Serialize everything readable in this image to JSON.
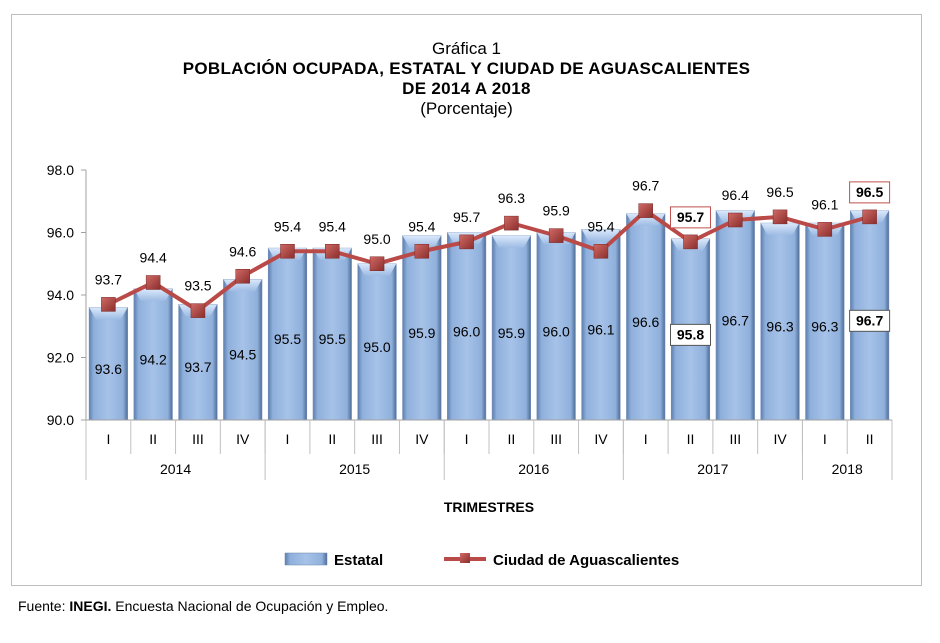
{
  "chart_data": {
    "type": "bar",
    "title_prefix": "Gráfica 1",
    "title": "POBLACIÓN OCUPADA, ESTATAL Y CIUDAD DE AGUASCALIENTES",
    "title_line2": "DE 2014 A 2018",
    "subtitle": "(Porcentaje)",
    "xlabel": "TRIMESTRES",
    "ylabel": "",
    "ylim": [
      90.0,
      98.0
    ],
    "yticks": [
      "90.0",
      "92.0",
      "94.0",
      "96.0",
      "98.0"
    ],
    "ytick_values": [
      90,
      92,
      94,
      96,
      98
    ],
    "categories": [
      "I",
      "II",
      "III",
      "IV",
      "I",
      "II",
      "III",
      "IV",
      "I",
      "II",
      "III",
      "IV",
      "I",
      "II",
      "III",
      "IV",
      "I",
      "II"
    ],
    "year_groups": [
      {
        "label": "2014",
        "count": 4
      },
      {
        "label": "2015",
        "count": 4
      },
      {
        "label": "2016",
        "count": 4
      },
      {
        "label": "2017",
        "count": 4
      },
      {
        "label": "2018",
        "count": 2
      }
    ],
    "series": [
      {
        "name": "Estatal",
        "type": "bar",
        "color": "#8eaedb",
        "values": [
          93.6,
          94.2,
          93.7,
          94.5,
          95.5,
          95.5,
          95.0,
          95.9,
          96.0,
          95.9,
          96.0,
          96.1,
          96.6,
          95.8,
          96.7,
          96.3,
          96.3,
          96.7
        ],
        "labels": [
          "93.6",
          "94.2",
          "93.7",
          "94.5",
          "95.5",
          "95.5",
          "95.0",
          "95.9",
          "96.0",
          "95.9",
          "96.0",
          "96.1",
          "96.6",
          "95.8",
          "96.7",
          "96.3",
          "96.3",
          "96.7"
        ],
        "highlighted_indices": [
          13,
          17
        ]
      },
      {
        "name": "Ciudad de Aguascalientes",
        "type": "line",
        "color": "#b94a48",
        "values": [
          93.7,
          94.4,
          93.5,
          94.6,
          95.4,
          95.4,
          95.0,
          95.4,
          95.7,
          96.3,
          95.9,
          95.4,
          96.7,
          95.7,
          96.4,
          96.5,
          96.1,
          96.5
        ],
        "labels": [
          "93.7",
          "94.4",
          "93.5",
          "94.6",
          "95.4",
          "95.4",
          "95.0",
          "95.4",
          "95.7",
          "96.3",
          "95.9",
          "95.4",
          "96.7",
          "95.7",
          "96.4",
          "96.5",
          "96.1",
          "96.5"
        ],
        "highlighted_indices": [
          13,
          17
        ]
      }
    ],
    "legend": {
      "position": "bottom",
      "items": [
        "Estatal",
        "Ciudad de Aguascalientes"
      ]
    },
    "grid": false
  },
  "source": {
    "prefix": "Fuente: ",
    "org": "INEGI.",
    "text": " Encuesta Nacional de Ocupación y Empleo."
  }
}
